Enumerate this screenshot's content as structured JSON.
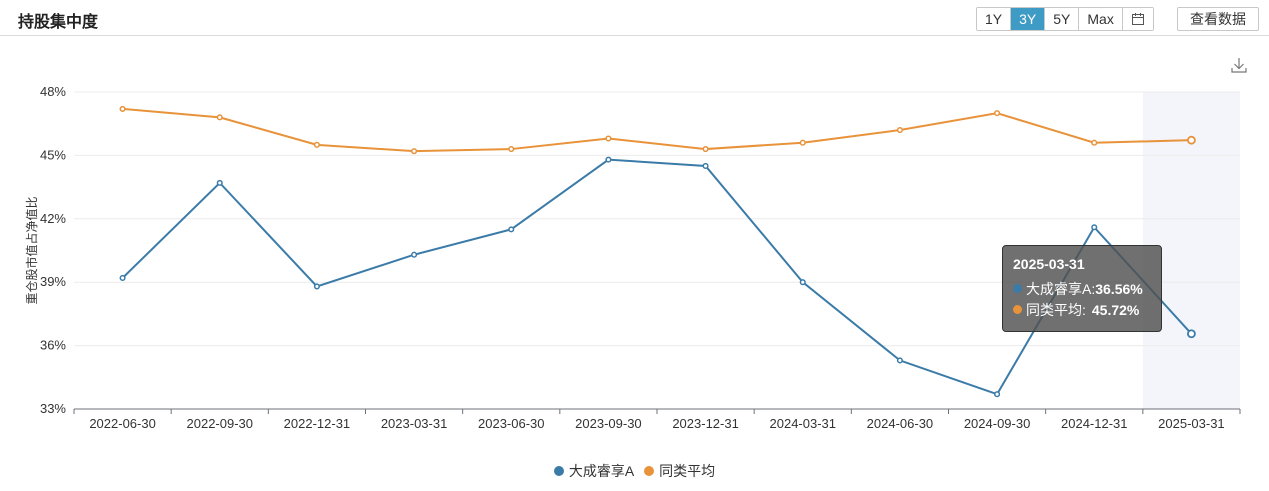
{
  "header": {
    "title": "持股集中度",
    "ranges": [
      "1Y",
      "3Y",
      "5Y",
      "Max"
    ],
    "active_range": "3Y",
    "view_data_label": "查看数据"
  },
  "colors": {
    "series_fund": "#3b7ba8",
    "series_avg": "#e8923a",
    "accent": "#3e9bc6"
  },
  "icons": {
    "calendar": "calendar-icon",
    "download": "download-icon"
  },
  "chart_data": {
    "type": "line",
    "ylabel": "重仓股市值占净值比",
    "ylim": [
      33,
      48
    ],
    "yticks": [
      "33%",
      "36%",
      "39%",
      "42%",
      "45%",
      "48%"
    ],
    "x": [
      "2022-06-30",
      "2022-09-30",
      "2022-12-31",
      "2023-03-31",
      "2023-06-30",
      "2023-09-30",
      "2023-12-31",
      "2024-03-31",
      "2024-06-30",
      "2024-09-30",
      "2024-12-31",
      "2025-03-31"
    ],
    "series": [
      {
        "name": "大成睿享A",
        "values": [
          39.2,
          43.7,
          38.8,
          40.3,
          41.5,
          44.8,
          44.5,
          39.0,
          35.3,
          33.7,
          41.6,
          36.56
        ]
      },
      {
        "name": "同类平均",
        "values": [
          47.2,
          46.8,
          45.5,
          45.2,
          45.3,
          45.8,
          45.3,
          45.6,
          46.2,
          47.0,
          45.6,
          45.72
        ]
      }
    ],
    "highlight_index": 11,
    "grid": true,
    "legend": "bottom-center"
  },
  "tooltip": {
    "date": "2025-03-31",
    "rows": [
      {
        "label": "大成睿享A:",
        "value": "36.56%"
      },
      {
        "label": "同类平均:",
        "value": "45.72%"
      }
    ]
  }
}
